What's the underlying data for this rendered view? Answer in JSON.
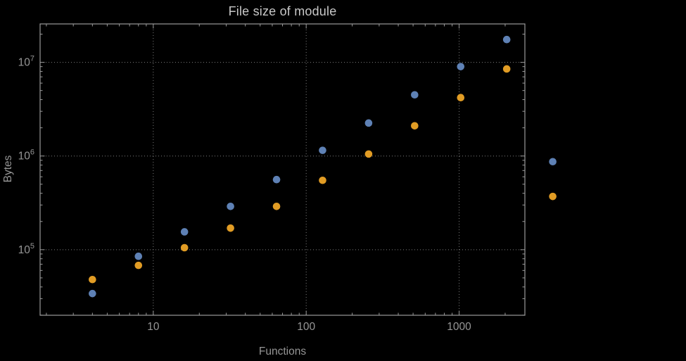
{
  "style": {
    "background": "#000000",
    "frame_color": "#9a9a9a",
    "grid_color": "#7d7d7d",
    "tick_text_color": "#969696",
    "title_color": "#c8c8c8",
    "axis_label_color": "#969696"
  },
  "chart_data": {
    "type": "scatter",
    "title": "File size of module",
    "xlabel": "Functions",
    "ylabel": "Bytes",
    "x_scale": "log",
    "y_scale": "log",
    "grid": "dotted",
    "legend": "none",
    "x_log_range": [
      0.26,
      3.43
    ],
    "y_log_range": [
      4.3,
      7.41
    ],
    "x_ticks": [
      {
        "value": 10,
        "label": "10"
      },
      {
        "value": 100,
        "label": "100"
      },
      {
        "value": 1000,
        "label": "1000"
      }
    ],
    "y_ticks": [
      {
        "value": 100000,
        "base": "10",
        "exp": "5"
      },
      {
        "value": 1000000,
        "base": "10",
        "exp": "6"
      },
      {
        "value": 10000000,
        "base": "10",
        "exp": "7"
      }
    ],
    "x": [
      4,
      8,
      16,
      32,
      64,
      128,
      256,
      512,
      1024,
      2048,
      4096
    ],
    "series": [
      {
        "name": "series-blue",
        "color": "#5e81b5",
        "values": [
          34000,
          85000,
          155000,
          290000,
          560000,
          1150000,
          2250000,
          4500000,
          9000000,
          17500000,
          870000
        ]
      },
      {
        "name": "series-orange",
        "color": "#e19c24",
        "values": [
          48000,
          68000,
          105000,
          170000,
          290000,
          550000,
          1050000,
          2100000,
          4200000,
          8500000,
          370000
        ]
      }
    ]
  }
}
